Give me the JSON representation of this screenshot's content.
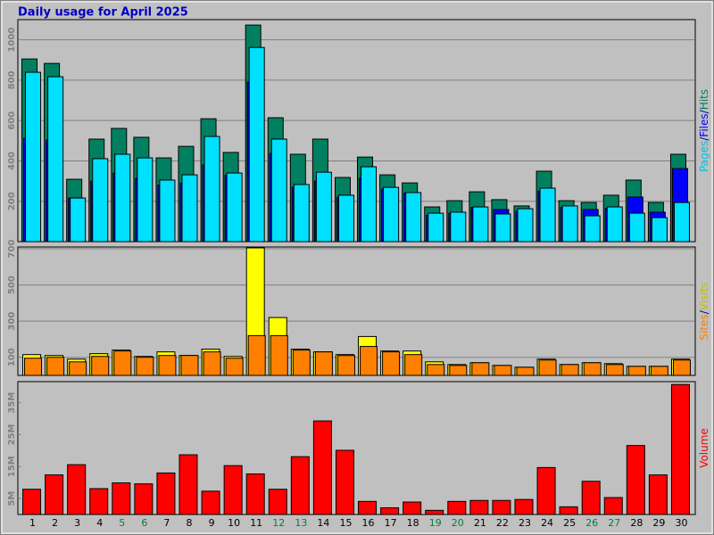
{
  "chart_data": [
    {
      "type": "bar",
      "title": "Daily usage for April 2025",
      "legend_separator": "/",
      "ylim": [
        0,
        1100
      ],
      "yticks": [
        200,
        400,
        600,
        800,
        1000
      ],
      "grid": true,
      "series": [
        {
          "name": "Hits",
          "color": "#008060",
          "values": [
            905,
            883,
            309,
            508,
            561,
            517,
            415,
            472,
            609,
            442,
            1073,
            614,
            433,
            508,
            318,
            419,
            331,
            291,
            172,
            203,
            247,
            208,
            177,
            349,
            203,
            194,
            230,
            305,
            194,
            433
          ]
        },
        {
          "name": "Files",
          "color": "#0000ff",
          "values": [
            512,
            503,
            216,
            300,
            340,
            313,
            280,
            290,
            380,
            330,
            790,
            437,
            270,
            300,
            220,
            313,
            260,
            240,
            130,
            140,
            170,
            159,
            150,
            250,
            170,
            159,
            165,
            221,
            146,
            362
          ]
        },
        {
          "name": "Pages",
          "color": "#00e0ff",
          "values": [
            839,
            817,
            216,
            411,
            433,
            415,
            305,
            331,
            521,
            340,
            962,
            508,
            283,
            344,
            230,
            371,
            269,
            243,
            141,
            146,
            172,
            137,
            163,
            265,
            177,
            128,
            172,
            141,
            119,
            194
          ]
        }
      ]
    },
    {
      "type": "bar",
      "ylim": [
        0,
        710
      ],
      "yticks": [
        100,
        300,
        500,
        700
      ],
      "grid": true,
      "series": [
        {
          "name": "Visits",
          "color": "#ffff00",
          "values": [
            115,
            110,
            90,
            120,
            140,
            105,
            130,
            110,
            145,
            105,
            705,
            320,
            145,
            130,
            115,
            215,
            135,
            135,
            75,
            60,
            70,
            55,
            45,
            90,
            60,
            70,
            65,
            50,
            50,
            90
          ]
        },
        {
          "name": "Sites",
          "color": "#ff8000",
          "values": [
            95,
            100,
            75,
            105,
            135,
            100,
            110,
            110,
            130,
            95,
            220,
            220,
            140,
            130,
            110,
            160,
            130,
            115,
            60,
            55,
            70,
            55,
            45,
            85,
            60,
            70,
            60,
            50,
            50,
            85
          ]
        }
      ]
    },
    {
      "type": "bar",
      "ylim": [
        0,
        41.6
      ],
      "yticks": [
        {
          "value": 5,
          "label": "5M"
        },
        {
          "value": 15,
          "label": "15M"
        },
        {
          "value": 25,
          "label": "25M"
        },
        {
          "value": 35,
          "label": "35M"
        }
      ],
      "grid": false,
      "categories": [
        "1",
        "2",
        "3",
        "4",
        "5",
        "6",
        "7",
        "8",
        "9",
        "10",
        "11",
        "12",
        "13",
        "14",
        "15",
        "16",
        "17",
        "18",
        "19",
        "20",
        "21",
        "22",
        "23",
        "24",
        "25",
        "26",
        "27",
        "28",
        "29",
        "30"
      ],
      "weekend_indices": [
        4,
        5,
        11,
        12,
        18,
        19,
        25,
        26
      ],
      "weekend_color": "#008040",
      "series": [
        {
          "name": "Volume",
          "color": "#ff0000",
          "values": [
            7.9,
            12.4,
            15.6,
            8.1,
            9.9,
            9.6,
            13.0,
            18.7,
            7.3,
            15.3,
            12.7,
            7.9,
            18.1,
            29.3,
            20.1,
            4.1,
            2.1,
            3.9,
            1.3,
            4.1,
            4.4,
            4.4,
            4.7,
            14.7,
            2.4,
            10.4,
            5.3,
            21.6,
            12.4,
            40.7
          ]
        }
      ]
    }
  ]
}
